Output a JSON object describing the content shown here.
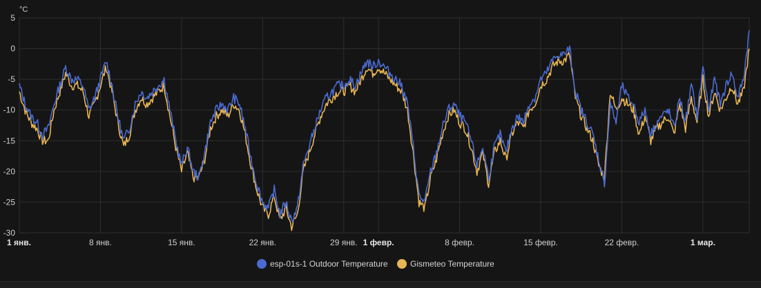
{
  "chart_data": {
    "type": "line",
    "ylabel": "°C",
    "ylim": [
      -30,
      5
    ],
    "yticks": [
      5,
      0,
      -5,
      -10,
      -15,
      -20,
      -25,
      -30
    ],
    "xlim": [
      0,
      63.0
    ],
    "xticks": [
      {
        "x": 0,
        "label": "1 янв.",
        "bold": true
      },
      {
        "x": 7,
        "label": "8 янв.",
        "bold": false
      },
      {
        "x": 14,
        "label": "15 янв.",
        "bold": false
      },
      {
        "x": 21,
        "label": "22 янв.",
        "bold": false
      },
      {
        "x": 28,
        "label": "29 янв.",
        "bold": false
      },
      {
        "x": 31,
        "label": "1 февр.",
        "bold": true
      },
      {
        "x": 38,
        "label": "8 февр.",
        "bold": false
      },
      {
        "x": 45,
        "label": "15 февр.",
        "bold": false
      },
      {
        "x": 52,
        "label": "22 февр.",
        "bold": false
      },
      {
        "x": 59,
        "label": "1 мар.",
        "bold": true
      }
    ],
    "grid": true,
    "legend_position": "bottom-center",
    "series": [
      {
        "name": "esp-01s-1 Outdoor Temperature",
        "color": "#4a6bd1",
        "x": [
          0,
          0.5,
          1,
          1.5,
          2,
          2.5,
          3,
          3.5,
          4,
          4.5,
          5,
          5.5,
          6,
          6.5,
          7,
          7.5,
          8,
          8.5,
          9,
          9.5,
          10,
          10.5,
          11,
          11.5,
          12,
          12.5,
          13,
          13.5,
          14,
          14.5,
          15,
          15.5,
          16,
          16.5,
          17,
          17.5,
          18,
          18.5,
          19,
          19.5,
          20,
          20.5,
          21,
          21.5,
          22,
          22.5,
          23,
          23.5,
          24,
          24.5,
          25,
          25.5,
          26,
          26.5,
          27,
          27.5,
          28,
          28.5,
          29,
          29.5,
          30,
          30.5,
          31,
          31.5,
          32,
          32.5,
          33,
          33.5,
          34,
          34.5,
          35,
          35.5,
          36,
          36.5,
          37,
          37.5,
          38,
          38.5,
          39,
          39.5,
          40,
          40.5,
          41,
          41.5,
          42,
          42.5,
          43,
          43.5,
          44,
          44.5,
          45,
          45.5,
          46,
          46.5,
          47,
          47.5,
          48,
          48.5,
          49,
          49.5,
          50,
          50.5,
          51,
          51.5,
          52,
          52.5,
          53,
          53.5,
          54,
          54.5,
          55,
          55.5,
          56,
          56.5,
          57,
          57.5,
          58,
          58.5,
          59,
          59.5,
          60,
          60.5,
          61,
          61.5,
          62,
          62.5,
          63
        ],
        "values": [
          -6,
          -9,
          -11,
          -12,
          -14,
          -13,
          -9,
          -6,
          -3,
          -5,
          -5,
          -6,
          -10,
          -8,
          -5,
          -2,
          -6,
          -11,
          -15,
          -13,
          -9,
          -7,
          -8,
          -7,
          -6,
          -5,
          -10,
          -15,
          -19,
          -16,
          -20,
          -21,
          -17,
          -12,
          -10,
          -9,
          -10,
          -8,
          -9,
          -13,
          -18,
          -22,
          -25,
          -26,
          -23,
          -27,
          -25,
          -28,
          -26,
          -19,
          -16,
          -13,
          -10,
          -8,
          -7,
          -6,
          -6,
          -5,
          -6,
          -4,
          -2,
          -3,
          -2,
          -3,
          -4,
          -5,
          -6,
          -9,
          -16,
          -24,
          -25,
          -20,
          -17,
          -13,
          -10,
          -9,
          -11,
          -12,
          -15,
          -19,
          -16,
          -21,
          -16,
          -14,
          -17,
          -13,
          -11,
          -12,
          -9,
          -8,
          -5,
          -4,
          -2,
          -1,
          -1,
          0,
          -7,
          -10,
          -12,
          -14,
          -18,
          -22,
          -9,
          -12,
          -6,
          -8,
          -9,
          -12,
          -10,
          -14,
          -12,
          -11,
          -10,
          -13,
          -8,
          -12,
          -6,
          -11,
          -3,
          -10,
          -5,
          -9,
          -6,
          -4,
          -8,
          -5,
          3
        ],
        "y_hint": "approximate shape"
      },
      {
        "name": "Gismeteo Temperature",
        "color": "#e8b553",
        "values": [
          -7,
          -10,
          -12,
          -13,
          -15,
          -15,
          -10,
          -7,
          -4,
          -6,
          -6,
          -7,
          -11,
          -9,
          -6,
          -3,
          -7,
          -12,
          -16,
          -14,
          -10,
          -8,
          -9,
          -8,
          -7,
          -6,
          -11,
          -16,
          -20,
          -17,
          -21,
          -21,
          -18,
          -13,
          -11,
          -10,
          -11,
          -9,
          -10,
          -14,
          -19,
          -23,
          -26,
          -27,
          -24,
          -28,
          -26,
          -29,
          -27,
          -20,
          -17,
          -14,
          -11,
          -9,
          -8,
          -7,
          -7,
          -6,
          -7,
          -5,
          -3,
          -4,
          -3,
          -4,
          -5,
          -6,
          -7,
          -10,
          -17,
          -25,
          -26,
          -21,
          -18,
          -14,
          -11,
          -10,
          -12,
          -13,
          -16,
          -20,
          -17,
          -22,
          -17,
          -15,
          -18,
          -14,
          -12,
          -13,
          -10,
          -9,
          -6,
          -5,
          -3,
          -2,
          -2,
          -1,
          -8,
          -11,
          -13,
          -15,
          -19,
          -21,
          -7,
          -10,
          -8,
          -9,
          -10,
          -14,
          -11,
          -15,
          -13,
          -12,
          -11,
          -14,
          -9,
          -13,
          -8,
          -12,
          -5,
          -11,
          -7,
          -10,
          -8,
          -6,
          -9,
          -7,
          0
        ]
      }
    ]
  },
  "legend": {
    "items": [
      {
        "label": "esp-01s-1 Outdoor Temperature",
        "color": "#4a6bd1"
      },
      {
        "label": "Gismeteo Temperature",
        "color": "#e8b553"
      }
    ]
  }
}
